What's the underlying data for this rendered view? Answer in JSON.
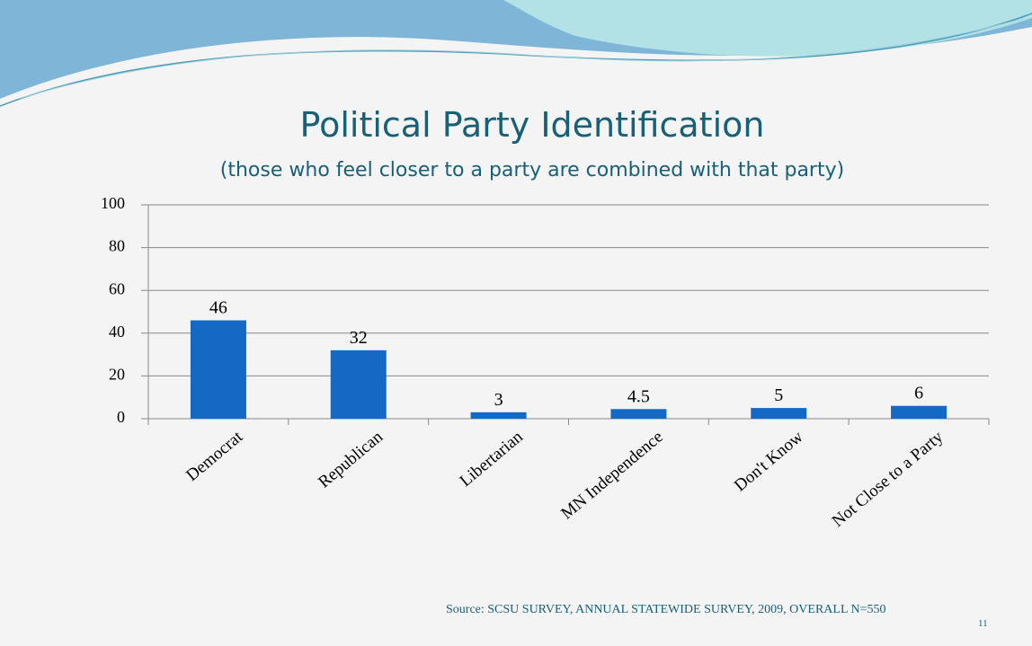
{
  "chart_data": {
    "type": "bar",
    "title": "Political Party Identification",
    "subtitle": "(those who feel closer to a party are combined with that party)",
    "categories": [
      "Democrat",
      "Republican",
      "Libertarian",
      "MN Independence",
      "Don't Know",
      "Not Close to a Party"
    ],
    "values": [
      46,
      32,
      3,
      4.5,
      5,
      6
    ],
    "color": "#1469c4",
    "ylim": [
      0,
      100
    ],
    "yticks": [
      0,
      20,
      40,
      60,
      80,
      100
    ],
    "grid": true
  },
  "source": "Source: SCSU SURVEY, ANNUAL STATEWIDE SURVEY, 2009, OVERALL N=550",
  "page_number": "11"
}
